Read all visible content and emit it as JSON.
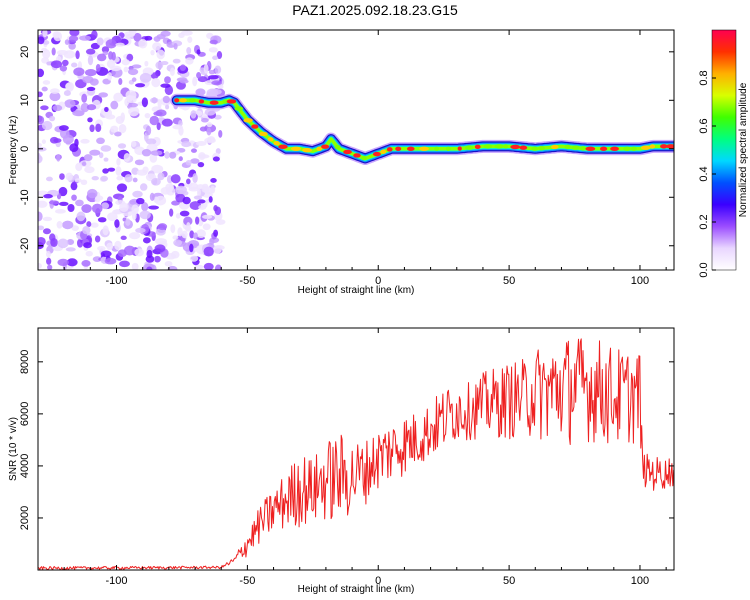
{
  "title": "PAZ1.2025.092.18.23.G15",
  "colors": {
    "snr_line": "#ee2020",
    "ridge_outline": "#1a10c8",
    "noise": "#8a2be2"
  },
  "chart_data": [
    {
      "type": "heatmap",
      "xlabel": "Height of straight line (km)",
      "ylabel": "Frequency (Hz)",
      "xlim": [
        -130,
        113
      ],
      "ylim": [
        -25,
        24.5
      ],
      "xticks": [
        -100,
        -50,
        0,
        50,
        100
      ],
      "yticks": [
        -20,
        -10,
        0,
        10,
        20
      ],
      "grid": false,
      "noise_region_x": [
        -130,
        -60
      ],
      "ridge": {
        "x": [
          -77,
          -70,
          -65,
          -60,
          -57,
          -55,
          -50,
          -45,
          -40,
          -35,
          -30,
          -25,
          -20,
          -18,
          -15,
          -10,
          -5,
          0,
          5,
          10,
          20,
          30,
          40,
          50,
          60,
          70,
          80,
          90,
          100,
          105,
          110,
          113
        ],
        "freq": [
          10,
          10,
          9.5,
          9.5,
          10,
          9.5,
          6,
          3.5,
          1.5,
          0,
          0,
          -0.5,
          0.5,
          2,
          0,
          -1,
          -2,
          -1,
          0,
          0,
          0,
          0,
          0.5,
          0.5,
          0,
          0.5,
          0,
          0,
          0,
          0.5,
          0.5,
          0.5
        ]
      },
      "colorbar": {
        "label": "Normalized spectral amplitude",
        "range": [
          0,
          1
        ],
        "ticks": [
          0.0,
          0.2,
          0.4,
          0.6,
          0.8
        ],
        "tick_labels": [
          "0.0",
          "0.2",
          "0.4",
          "0.6",
          "0.8"
        ],
        "colormap": [
          "#ffffff",
          "#e9d6ff",
          "#9b4dff",
          "#3a00ff",
          "#0050ff",
          "#00d8ff",
          "#00ff80",
          "#40ff00",
          "#d8ff00",
          "#ffb000",
          "#ff3000",
          "#ff0050"
        ]
      }
    },
    {
      "type": "line",
      "xlabel": "Height of straight line (km)",
      "ylabel": "SNR (10 * v/v)",
      "xlim": [
        -130,
        113
      ],
      "ylim": [
        0,
        9300
      ],
      "xticks": [
        -100,
        -50,
        0,
        50,
        100
      ],
      "yticks": [
        2000,
        4000,
        6000,
        8000
      ],
      "grid": false,
      "series": [
        {
          "envelope": {
            "x": [
              -130,
              -60,
              -55,
              -50,
              -45,
              -40,
              -35,
              -30,
              -25,
              -20,
              -15,
              -10,
              -5,
              0,
              5,
              10,
              15,
              20,
              25,
              30,
              35,
              40,
              45,
              50,
              55,
              60,
              65,
              70,
              75,
              80,
              85,
              90,
              95,
              100,
              101,
              105,
              110,
              113
            ],
            "low": [
              0,
              50,
              200,
              500,
              1000,
              1300,
              1500,
              1600,
              1700,
              1800,
              1700,
              2000,
              2500,
              3000,
              3300,
              3600,
              3900,
              4200,
              4500,
              4900,
              5000,
              5000,
              5000,
              5000,
              5000,
              5000,
              4800,
              4800,
              4800,
              4900,
              4800,
              4600,
              4800,
              4800,
              3200,
              3000,
              3100,
              3200
            ],
            "high": [
              130,
              150,
              500,
              1500,
              2500,
              3200,
              3800,
              4600,
              4300,
              5000,
              5300,
              5000,
              5000,
              5500,
              5800,
              6000,
              6100,
              6500,
              7000,
              7300,
              7200,
              7600,
              7800,
              8000,
              8100,
              8600,
              8700,
              9000,
              9100,
              9000,
              8900,
              8600,
              8500,
              8500,
              4500,
              4400,
              4300,
              4500
            ]
          }
        }
      ]
    }
  ]
}
